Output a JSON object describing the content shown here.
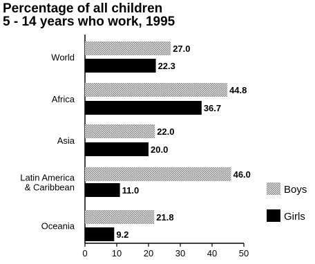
{
  "chart_data": {
    "type": "bar",
    "orientation": "horizontal",
    "title": "Percentage of all children 5 - 14 years who work, 1995",
    "title_lines": [
      "Percentage of all children",
      "5 - 14 years who work, 1995"
    ],
    "categories": [
      {
        "lines": [
          "World"
        ]
      },
      {
        "lines": [
          "Africa"
        ]
      },
      {
        "lines": [
          "Asia"
        ]
      },
      {
        "lines": [
          "Latin America",
          "& Caribbean"
        ]
      },
      {
        "lines": [
          "Oceania"
        ]
      }
    ],
    "series": [
      {
        "name": "Boys",
        "fill": "hatched-gray",
        "values": [
          27.0,
          44.8,
          22.0,
          46.0,
          21.8
        ],
        "labels": [
          "27.0",
          "44.8",
          "22.0",
          "46.0",
          "21.8"
        ]
      },
      {
        "name": "Girls",
        "fill": "#000000",
        "values": [
          22.3,
          36.7,
          20.0,
          11.0,
          9.2
        ],
        "labels": [
          "22.3",
          "36.7",
          "20.0",
          "11.0",
          "9.2"
        ]
      }
    ],
    "xlim": [
      0,
      50
    ],
    "xticks": [
      "0",
      "10",
      "20",
      "30",
      "40",
      "50"
    ],
    "grid": false,
    "legend_position": "right"
  }
}
